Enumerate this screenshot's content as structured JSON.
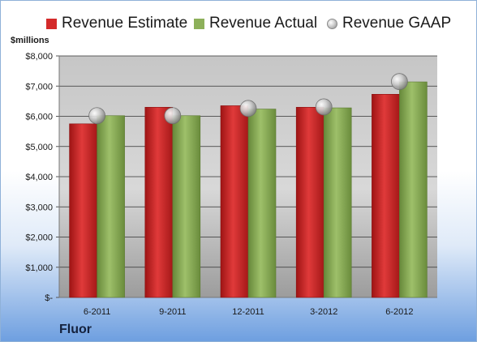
{
  "chart_data": {
    "type": "bar",
    "title": "",
    "xlabel": "",
    "ylabel": "$millions",
    "categories": [
      "6-2011",
      "9-2011",
      "12-2011",
      "3-2012",
      "6-2012"
    ],
    "series": [
      {
        "name": "Revenue Estimate",
        "kind": "bar",
        "color": "#d42a2a",
        "values": [
          5750,
          6300,
          6350,
          6300,
          6730
        ]
      },
      {
        "name": "Revenue Actual",
        "kind": "bar",
        "color": "#8db05a",
        "values": [
          6020,
          6020,
          6240,
          6280,
          7140
        ]
      },
      {
        "name": "Revenue GAAP",
        "kind": "marker",
        "color": "#b8b8b8",
        "values": [
          6020,
          6020,
          6260,
          6310,
          7150
        ]
      }
    ],
    "ylim": [
      0,
      8000
    ],
    "yticks": [
      0,
      1000,
      2000,
      3000,
      4000,
      5000,
      6000,
      7000,
      8000
    ],
    "ytick_labels": [
      "$-",
      "$1,000",
      "$2,000",
      "$3,000",
      "$4,000",
      "$5,000",
      "$6,000",
      "$7,000",
      "$8,000"
    ],
    "grid": true,
    "legend": "top",
    "company": "Fluor"
  }
}
